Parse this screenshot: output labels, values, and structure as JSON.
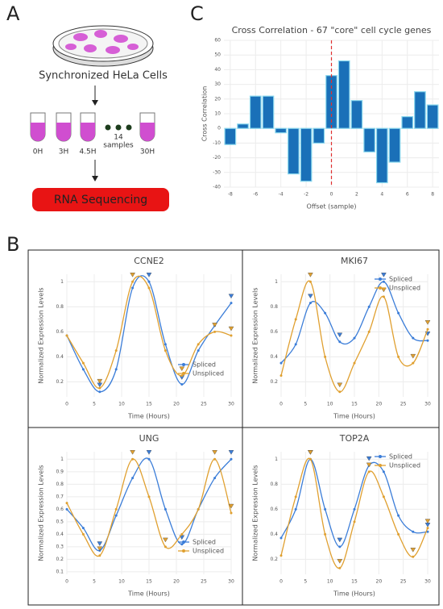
{
  "panel_labels": [
    "A",
    "B",
    "C"
  ],
  "panel_a": {
    "cells_label": "Synchronized HeLa Cells",
    "tubes": [
      "0H",
      "3H",
      "4.5H",
      "30H"
    ],
    "samples_note": [
      "14",
      "samples"
    ],
    "sequencing": "RNA Sequencing"
  },
  "chart_data": [
    {
      "type": "bar",
      "title": "Cross Correlation - 67 \"core\" cell cycle genes",
      "x_label": "Offset (sample)",
      "y_label": "Cross Correlation",
      "x": [
        -8,
        -7,
        -6,
        -5,
        -4,
        -3,
        -2,
        -1,
        0,
        1,
        2,
        3,
        4,
        5,
        6,
        7,
        8
      ],
      "values": [
        -11,
        3,
        22,
        22,
        -3,
        -31,
        -36,
        -10,
        36,
        46,
        19,
        -16,
        -37,
        -23,
        8,
        25,
        16
      ],
      "color": "#1a70b8",
      "edge_color": "#8ad8ee",
      "zero_line_color": "#e03030",
      "xlim": [
        -8.5,
        8.5
      ],
      "xticks": [
        -8,
        -6,
        -4,
        -2,
        0,
        2,
        4,
        6,
        8
      ],
      "ylim": [
        -40,
        60
      ],
      "yticks": [
        -40,
        -30,
        -20,
        -10,
        0,
        10,
        20,
        30,
        40,
        50,
        60
      ],
      "grid": true
    },
    {
      "type": "line",
      "title": "CCNE2",
      "x_label": "Time (Hours)",
      "y_label": "Normalized Expression Levels",
      "legend": "lower right",
      "x": [
        0,
        3,
        6,
        9,
        12,
        15,
        18,
        21,
        24,
        27,
        30
      ],
      "series": [
        {
          "name": "Spliced",
          "color": "#3b7dd8",
          "values": [
            0.57,
            0.3,
            0.12,
            0.3,
            0.95,
            1.0,
            0.5,
            0.18,
            0.45,
            0.65,
            0.83
          ]
        },
        {
          "name": "Unspliced",
          "color": "#e0a030",
          "values": [
            0.57,
            0.35,
            0.15,
            0.45,
            1.0,
            0.95,
            0.45,
            0.25,
            0.5,
            0.6,
            0.57
          ]
        }
      ],
      "xlim": [
        0,
        30
      ],
      "xticks": [
        0,
        5,
        10,
        15,
        20,
        25,
        30
      ],
      "ylim": [
        0.08,
        1.06
      ],
      "yticks": [
        0.2,
        0.4,
        0.6,
        0.8,
        1
      ],
      "grid": true
    },
    {
      "type": "line",
      "title": "MKI67",
      "x_label": "Time (Hours)",
      "y_label": "Normalized Expression Levels",
      "legend": "upper right",
      "x": [
        0,
        3,
        6,
        9,
        12,
        15,
        18,
        21,
        24,
        27,
        30
      ],
      "series": [
        {
          "name": "Spliced",
          "color": "#3b7dd8",
          "values": [
            0.35,
            0.5,
            0.83,
            0.75,
            0.52,
            0.55,
            0.8,
            1.0,
            0.75,
            0.55,
            0.53
          ]
        },
        {
          "name": "Unspliced",
          "color": "#e0a030",
          "values": [
            0.25,
            0.7,
            1.0,
            0.4,
            0.12,
            0.35,
            0.6,
            0.88,
            0.4,
            0.35,
            0.62
          ]
        }
      ],
      "xlim": [
        0,
        30
      ],
      "xticks": [
        0,
        5,
        10,
        15,
        20,
        25,
        30
      ],
      "ylim": [
        0.08,
        1.06
      ],
      "yticks": [
        0.2,
        0.4,
        0.6,
        0.8,
        1
      ],
      "grid": true
    },
    {
      "type": "line",
      "title": "UNG",
      "x_label": "Time (Hours)",
      "y_label": "Normalized Expression Levels",
      "legend": "lower right",
      "x": [
        0,
        3,
        6,
        9,
        12,
        15,
        18,
        21,
        24,
        27,
        30
      ],
      "series": [
        {
          "name": "Spliced",
          "color": "#3b7dd8",
          "values": [
            0.6,
            0.45,
            0.27,
            0.55,
            0.85,
            1.0,
            0.6,
            0.32,
            0.6,
            0.85,
            1.0
          ]
        },
        {
          "name": "Unspliced",
          "color": "#e0a030",
          "values": [
            0.65,
            0.4,
            0.23,
            0.6,
            1.0,
            0.7,
            0.3,
            0.4,
            0.6,
            1.0,
            0.57
          ]
        }
      ],
      "xlim": [
        0,
        30
      ],
      "xticks": [
        0,
        5,
        10,
        15,
        20,
        25,
        30
      ],
      "ylim": [
        0.08,
        1.06
      ],
      "yticks": [
        0.1,
        0.2,
        0.3,
        0.4,
        0.5,
        0.6,
        0.7,
        0.8,
        0.9,
        1
      ],
      "grid": true
    },
    {
      "type": "line",
      "title": "TOP2A",
      "x_label": "Time (Hours)",
      "y_label": "Normalized Expression Levels",
      "legend": "upper right",
      "x": [
        0,
        3,
        6,
        9,
        12,
        15,
        18,
        21,
        24,
        27,
        30
      ],
      "series": [
        {
          "name": "Spliced",
          "color": "#3b7dd8",
          "values": [
            0.37,
            0.6,
            1.0,
            0.6,
            0.3,
            0.6,
            0.95,
            0.9,
            0.55,
            0.42,
            0.42
          ]
        },
        {
          "name": "Unspliced",
          "color": "#e0a030",
          "values": [
            0.23,
            0.7,
            1.0,
            0.4,
            0.13,
            0.5,
            0.9,
            0.7,
            0.4,
            0.22,
            0.45
          ]
        }
      ],
      "xlim": [
        0,
        30
      ],
      "xticks": [
        0,
        5,
        10,
        15,
        20,
        25,
        30
      ],
      "ylim": [
        0.08,
        1.06
      ],
      "yticks": [
        0.2,
        0.4,
        0.6,
        0.8,
        1
      ],
      "grid": true
    }
  ]
}
